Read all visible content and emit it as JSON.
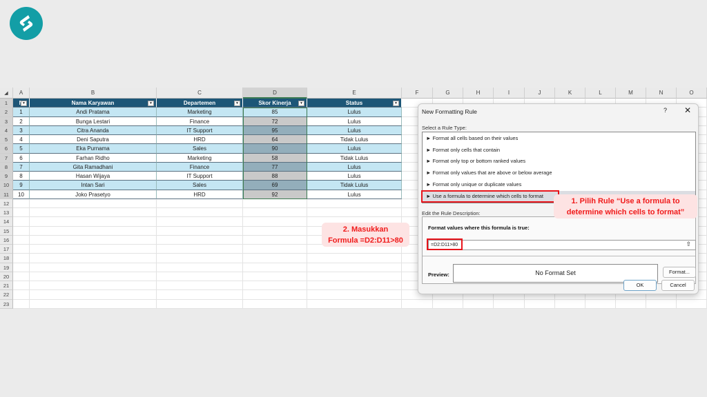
{
  "logo": {
    "icon": "brand-s-logo",
    "color": "#139ea6"
  },
  "columns": [
    "A",
    "B",
    "C",
    "D",
    "E",
    "F",
    "G",
    "H",
    "I",
    "J",
    "K",
    "L",
    "M",
    "N",
    "O"
  ],
  "rows": [
    "1",
    "2",
    "3",
    "4",
    "5",
    "6",
    "7",
    "8",
    "9",
    "10",
    "11",
    "12",
    "13",
    "14",
    "15",
    "16",
    "17",
    "18",
    "19",
    "20",
    "21",
    "22",
    "23"
  ],
  "table": {
    "headers": [
      "N",
      "Nama Karyawan",
      "Departemen",
      "Skor Kinerja",
      "Status"
    ],
    "data": [
      [
        "1",
        "Andi Pratama",
        "Marketing",
        "85",
        "Lulus"
      ],
      [
        "2",
        "Bunga Lestari",
        "Finance",
        "72",
        "Lulus"
      ],
      [
        "3",
        "Citra Ananda",
        "IT Support",
        "95",
        "Lulus"
      ],
      [
        "4",
        "Deni Saputra",
        "HRD",
        "64",
        "Tidak Lulus"
      ],
      [
        "5",
        "Eka Purnama",
        "Sales",
        "90",
        "Lulus"
      ],
      [
        "6",
        "Farhan Ridho",
        "Marketing",
        "58",
        "Tidak Lulus"
      ],
      [
        "7",
        "Gita Ramadhani",
        "Finance",
        "77",
        "Lulus"
      ],
      [
        "8",
        "Hasan Wijaya",
        "IT Support",
        "88",
        "Lulus"
      ],
      [
        "9",
        "Intan Sari",
        "Sales",
        "69",
        "Tidak Lulus"
      ],
      [
        "10",
        "Joko Prasetyo",
        "HRD",
        "92",
        "Lulus"
      ]
    ],
    "header_color": "#1d5677",
    "band_color": "#c4e6f3"
  },
  "dialog": {
    "title": "New Formatting Rule",
    "help": "?",
    "close": "✕",
    "select_label": "Select a Rule Type:",
    "rule_types": [
      "► Format all cells based on their values",
      "► Format only cells that contain",
      "► Format only top or bottom ranked values",
      "► Format only values that are above or below average",
      "► Format only unique or duplicate values",
      "► Use a formula to determine which cells to format"
    ],
    "edit_label": "Edit the Rule Description:",
    "formula_label": "Format values where this formula is true:",
    "formula_value": "=D2:D11>80",
    "preview_label": "Preview:",
    "preview_text": "No Format Set",
    "format_button": "Format...",
    "ok": "OK",
    "cancel": "Cancel"
  },
  "callouts": {
    "step1_line1": "1. Pilih Rule “Use a formula to",
    "step1_line2": "determine which cells to format”",
    "step2_line1": "2. Masukkan",
    "step2_line2": "Formula =D2:D11>80",
    "color": "#f01b1b"
  }
}
